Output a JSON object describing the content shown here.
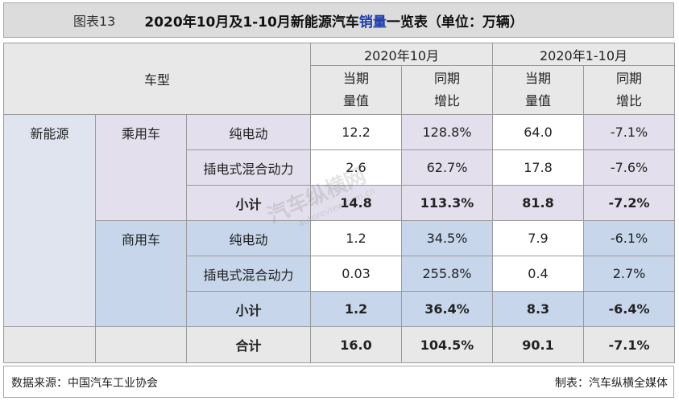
{
  "header": {
    "figure_no": "图表13",
    "title_before": "2020年10月及1-10月新能源汽车",
    "title_highlight": "销量",
    "title_after": "一览表（单位：万辆）"
  },
  "table": {
    "col_vehicle_type": "车型",
    "period_month": "2020年10月",
    "period_ytd": "2020年1-10月",
    "sub_value_1": "当期",
    "sub_value_2": "量值",
    "sub_growth_1": "同期",
    "sub_growth_2": "增比",
    "category": "新能源",
    "groups": [
      {
        "name": "乘用车",
        "rows": [
          {
            "type": "纯电动",
            "m_val": "12.2",
            "m_yoy": "128.8%",
            "y_val": "64.0",
            "y_yoy": "-7.1%"
          },
          {
            "type": "插电式混合动力",
            "m_val": "2.6",
            "m_yoy": "62.7%",
            "y_val": "17.8",
            "y_yoy": "-7.6%"
          }
        ],
        "subtotal": {
          "label": "小计",
          "m_val": "14.8",
          "m_yoy": "113.3%",
          "y_val": "81.8",
          "y_yoy": "-7.2%"
        }
      },
      {
        "name": "商用车",
        "rows": [
          {
            "type": "纯电动",
            "m_val": "1.2",
            "m_yoy": "34.5%",
            "y_val": "7.9",
            "y_yoy": "-6.1%"
          },
          {
            "type": "插电式混合动力",
            "m_val": "0.03",
            "m_yoy": "255.8%",
            "y_val": "0.4",
            "y_yoy": "2.7%"
          }
        ],
        "subtotal": {
          "label": "小计",
          "m_val": "1.2",
          "m_yoy": "36.4%",
          "y_val": "8.3",
          "y_yoy": "-6.4%"
        }
      }
    ],
    "total": {
      "label": "合计",
      "m_val": "16.0",
      "m_yoy": "104.5%",
      "y_val": "90.1",
      "y_yoy": "-7.1%"
    }
  },
  "footer": {
    "source": "数据来源：中国汽车工业协会",
    "maker": "制表：汽车纵横全媒体"
  },
  "watermark": {
    "text": "汽车纵横网",
    "url": "autoreview.com.cn"
  },
  "colors": {
    "title_highlight": "#1f3fb0",
    "negative": "#e0141e",
    "passenger_bg": "#e3dfec",
    "commercial_bg": "#c7d6ea"
  }
}
